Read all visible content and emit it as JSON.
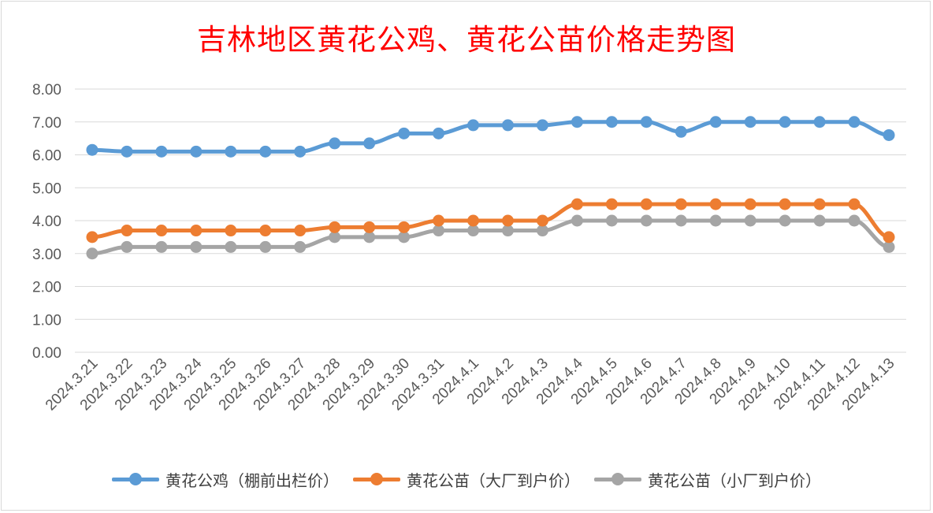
{
  "chart_data": {
    "type": "line",
    "title": "吉林地区黄花公鸡、黄花公苗价格走势图",
    "categories": [
      "2024.3.21",
      "2024.3.22",
      "2024.3.23",
      "2024.3.24",
      "2024.3.25",
      "2024.3.26",
      "2024.3.27",
      "2024.3.28",
      "2024.3.29",
      "2024.3.30",
      "2024.3.31",
      "2024.4.1",
      "2024.4.2",
      "2024.4.3",
      "2024.4.4",
      "2024.4.5",
      "2024.4.6",
      "2024.4.7",
      "2024.4.8",
      "2024.4.9",
      "2024.4.10",
      "2024.4.11",
      "2024.4.12",
      "2024.4.13"
    ],
    "y_ticks": [
      "0.00",
      "1.00",
      "2.00",
      "3.00",
      "4.00",
      "5.00",
      "6.00",
      "7.00",
      "8.00"
    ],
    "ylim": [
      0,
      8
    ],
    "grid": true,
    "legend_position": "bottom",
    "series": [
      {
        "name": "黄花公鸡（棚前出栏价）",
        "color": "#5b9bd5",
        "values": [
          6.15,
          6.1,
          6.1,
          6.1,
          6.1,
          6.1,
          6.1,
          6.35,
          6.35,
          6.65,
          6.65,
          6.9,
          6.9,
          6.9,
          7.0,
          7.0,
          7.0,
          6.7,
          7.0,
          7.0,
          7.0,
          7.0,
          7.0,
          6.6
        ]
      },
      {
        "name": "黄花公苗（大厂到户价）",
        "color": "#ed7d31",
        "values": [
          3.5,
          3.7,
          3.7,
          3.7,
          3.7,
          3.7,
          3.7,
          3.8,
          3.8,
          3.8,
          4.0,
          4.0,
          4.0,
          4.0,
          4.5,
          4.5,
          4.5,
          4.5,
          4.5,
          4.5,
          4.5,
          4.5,
          4.5,
          3.5
        ]
      },
      {
        "name": "黄花公苗（小厂到户价）",
        "color": "#a5a5a5",
        "values": [
          3.0,
          3.2,
          3.2,
          3.2,
          3.2,
          3.2,
          3.2,
          3.5,
          3.5,
          3.5,
          3.7,
          3.7,
          3.7,
          3.7,
          4.0,
          4.0,
          4.0,
          4.0,
          4.0,
          4.0,
          4.0,
          4.0,
          4.0,
          3.2
        ]
      }
    ]
  },
  "colors": {
    "title": "#ff0000",
    "grid": "#d9d9d9",
    "axis_text": "#595959"
  }
}
